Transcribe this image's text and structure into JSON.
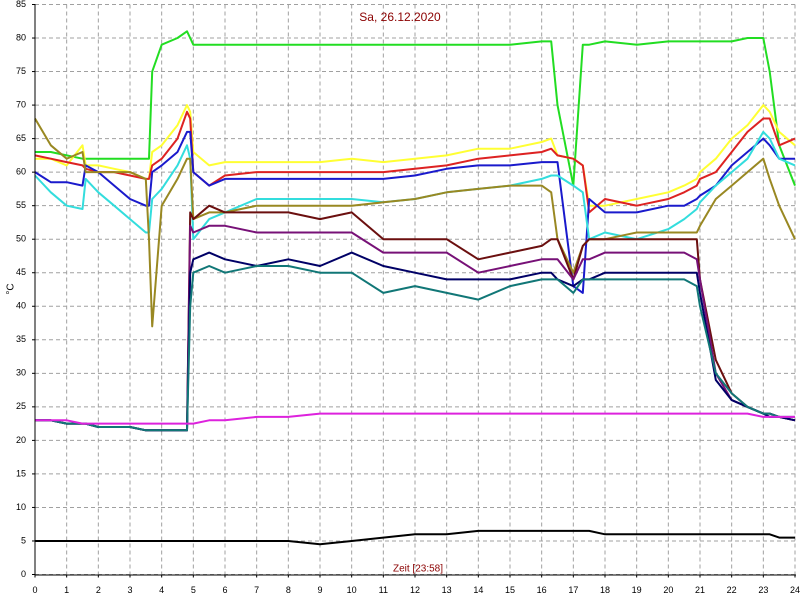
{
  "chart_data": {
    "type": "line",
    "title": "Sa, 26.12.2020",
    "x_label": "Zeit [23:58]",
    "y_label": "°C",
    "grid": true,
    "xlim": [
      0,
      24
    ],
    "ylim": [
      0,
      85
    ],
    "xticks": [
      0,
      1,
      2,
      3,
      4,
      5,
      6,
      7,
      8,
      9,
      10,
      11,
      12,
      13,
      14,
      15,
      16,
      17,
      18,
      19,
      20,
      21,
      22,
      23,
      24
    ],
    "yticks": [
      0,
      5,
      10,
      15,
      20,
      25,
      30,
      35,
      40,
      45,
      50,
      55,
      60,
      65,
      70,
      75,
      80,
      85
    ],
    "x": [
      0,
      0.5,
      1,
      1.5,
      1.6,
      2,
      2.5,
      3,
      3.5,
      3.6,
      3.7,
      4,
      4.5,
      4.8,
      4.9,
      5,
      5.5,
      6,
      7,
      8,
      9,
      10,
      11,
      12,
      13,
      14,
      15,
      16,
      16.3,
      16.5,
      17,
      17.3,
      17.5,
      18,
      19,
      20,
      20.5,
      20.9,
      21,
      21.5,
      22,
      22.5,
      23,
      23.2,
      23.5,
      24
    ],
    "series": [
      {
        "color": "#22dd22",
        "values": [
          63,
          63,
          62.5,
          62,
          62,
          62,
          62,
          62,
          62,
          62,
          75,
          79,
          80,
          81,
          80,
          79,
          79,
          79,
          79,
          79,
          79,
          79,
          79,
          79,
          79,
          79,
          79,
          79.5,
          79.5,
          70,
          58,
          79,
          79,
          79.5,
          79,
          79.5,
          79.5,
          79.5,
          79.5,
          79.5,
          79.5,
          80,
          80,
          75,
          64,
          58
        ]
      },
      {
        "color": "#ffff33",
        "values": [
          62,
          62,
          61,
          64,
          61,
          61,
          60.5,
          60,
          59,
          59,
          63,
          64,
          67,
          70,
          69,
          63,
          61,
          61.5,
          61.5,
          61.5,
          61.5,
          62,
          61.5,
          62,
          62.5,
          63.5,
          63.5,
          64.5,
          65,
          62.5,
          62,
          61,
          55,
          55,
          56,
          57,
          58,
          59,
          60,
          62,
          65,
          67,
          70,
          69,
          66,
          64
        ]
      },
      {
        "color": "#dd2222",
        "values": [
          62.5,
          62,
          61.5,
          61,
          60.5,
          60,
          60,
          59.5,
          59,
          59,
          61,
          62,
          65,
          69,
          68,
          60,
          58,
          59.5,
          60,
          60,
          60,
          60,
          60,
          60.5,
          61,
          62,
          62.5,
          63,
          63.5,
          62.5,
          62,
          61,
          54,
          56,
          55,
          56,
          57,
          58,
          59,
          60,
          63,
          66,
          68,
          68,
          64,
          65
        ]
      },
      {
        "color": "#1a1acc",
        "values": [
          60,
          58.5,
          58.5,
          58,
          61,
          60,
          58,
          56,
          55,
          55,
          60,
          61,
          63,
          66,
          66,
          60,
          58,
          59,
          59,
          59,
          59,
          59,
          59,
          59.5,
          60.5,
          61,
          61,
          61.5,
          61.5,
          61.5,
          43,
          42,
          56,
          54,
          54,
          55,
          55,
          56,
          56.5,
          58,
          61,
          63,
          65,
          64,
          62,
          62
        ]
      },
      {
        "color": "#33dddd",
        "values": [
          59.5,
          57,
          55,
          54.5,
          59,
          57,
          55,
          53,
          51,
          51,
          56,
          57.5,
          61,
          64,
          62,
          50,
          53,
          54,
          56,
          56,
          56,
          56,
          55.5,
          56,
          57,
          57.5,
          58,
          59,
          59.5,
          59.5,
          58,
          57,
          50,
          51,
          50,
          51.5,
          53,
          54.5,
          55.5,
          58,
          60,
          62,
          66,
          65,
          62,
          61
        ]
      },
      {
        "color": "#998822",
        "values": [
          68,
          64,
          62,
          63,
          60,
          60,
          60,
          60,
          59,
          50,
          37,
          55,
          59,
          62,
          62,
          53,
          54,
          54,
          55,
          55,
          55,
          55,
          55.5,
          56,
          57,
          57.5,
          58,
          58,
          57,
          50,
          45,
          49,
          50,
          50,
          51,
          51,
          51,
          51,
          52,
          56,
          58,
          60,
          62,
          59,
          55,
          50
        ]
      },
      {
        "color": "#6b0f0f",
        "values": [
          23,
          23,
          22.5,
          22.5,
          22.5,
          22,
          22,
          22,
          21.5,
          21.5,
          21.5,
          21.5,
          21.5,
          21.5,
          54,
          53,
          55,
          54,
          54,
          54,
          53,
          54,
          50,
          50,
          50,
          47,
          48,
          49,
          50,
          50,
          44,
          49,
          50,
          50,
          50,
          50,
          50,
          50,
          44,
          32,
          27,
          25,
          24,
          24,
          23.5,
          23
        ]
      },
      {
        "color": "#771177",
        "values": [
          23,
          23,
          22.5,
          22.5,
          22.5,
          22,
          22,
          22,
          21.5,
          21.5,
          21.5,
          21.5,
          21.5,
          21.5,
          52,
          51,
          52,
          52,
          51,
          51,
          51,
          51,
          48,
          48,
          48,
          45,
          46,
          47,
          47,
          47,
          44,
          47,
          47,
          48,
          48,
          48,
          48,
          47,
          44,
          30,
          26,
          25,
          24,
          24,
          23.5,
          23
        ]
      },
      {
        "color": "#000066",
        "values": [
          23,
          23,
          22.5,
          22.5,
          22.5,
          22,
          22,
          22,
          21.5,
          21.5,
          21.5,
          21.5,
          21.5,
          21.5,
          45,
          47,
          48,
          47,
          46,
          47,
          46,
          48,
          46,
          45,
          44,
          44,
          44,
          45,
          45,
          44,
          43,
          44,
          44,
          45,
          45,
          45,
          45,
          45,
          42,
          29,
          26,
          25,
          24,
          23.5,
          23.5,
          23
        ]
      },
      {
        "color": "#117777",
        "values": [
          23,
          23,
          22.5,
          22.5,
          22.5,
          22,
          22,
          22,
          21.5,
          21.5,
          21.5,
          21.5,
          21.5,
          21.5,
          40,
          45,
          46,
          45,
          46,
          46,
          45,
          45,
          42,
          43,
          42,
          41,
          43,
          44,
          44,
          44,
          42,
          44,
          44,
          44,
          44,
          44,
          44,
          43,
          40,
          30,
          27,
          25,
          24,
          24,
          23.5,
          23.5
        ]
      },
      {
        "color": "#dd22dd",
        "values": [
          23,
          23,
          23,
          22.5,
          22.5,
          22.5,
          22.5,
          22.5,
          22.5,
          22.5,
          22.5,
          22.5,
          22.5,
          22.5,
          22.5,
          22.5,
          23,
          23,
          23.5,
          23.5,
          24,
          24,
          24,
          24,
          24,
          24,
          24,
          24,
          24,
          24,
          24,
          24,
          24,
          24,
          24,
          24,
          24,
          24,
          24,
          24,
          24,
          24,
          23.5,
          23.5,
          23.5,
          23.5
        ]
      },
      {
        "color": "#000000",
        "values": [
          5,
          5,
          5,
          5,
          5,
          5,
          5,
          5,
          5,
          5,
          5,
          5,
          5,
          5,
          5,
          5,
          5,
          5,
          5,
          5,
          4.5,
          5,
          5.5,
          6,
          6,
          6.5,
          6.5,
          6.5,
          6.5,
          6.5,
          6.5,
          6.5,
          6.5,
          6,
          6,
          6,
          6,
          6,
          6,
          6,
          6,
          6,
          6,
          6,
          5.5,
          5.5
        ]
      }
    ]
  }
}
